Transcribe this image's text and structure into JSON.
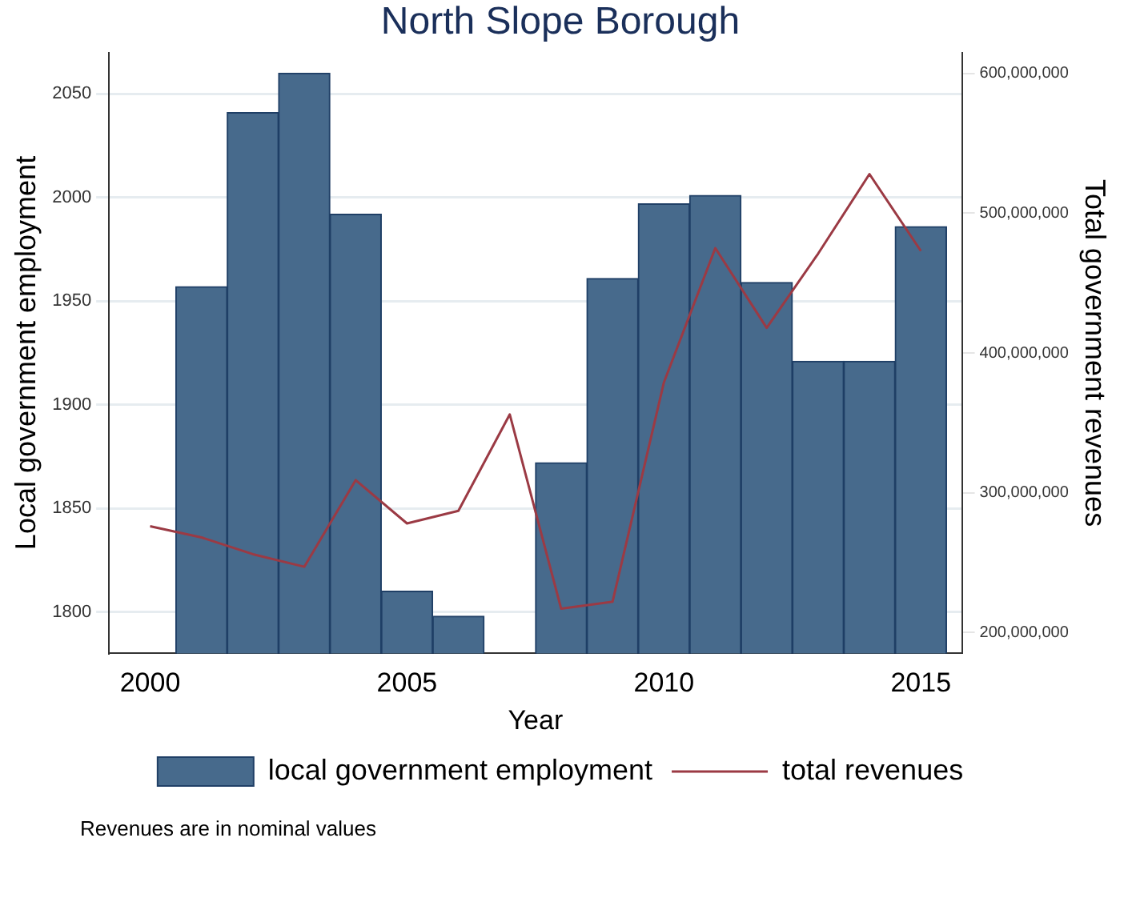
{
  "chart_data": {
    "type": "bar",
    "title": "North Slope Borough",
    "xlabel": "Year",
    "ylabel": "Local government employment",
    "y2label": "Total government revenues",
    "x": [
      2000,
      2001,
      2002,
      2003,
      2004,
      2005,
      2006,
      2007,
      2008,
      2009,
      2010,
      2011,
      2012,
      2013,
      2014,
      2015
    ],
    "series": [
      {
        "name": "local government employment",
        "color": "#476a8c",
        "values": [
          null,
          1957,
          2041,
          2060,
          1992,
          1810,
          1798,
          null,
          1872,
          1961,
          1997,
          2001,
          1959,
          1921,
          1921,
          1986
        ]
      },
      {
        "name": "total revenues",
        "type": "line",
        "axis": "y2",
        "color": "#9b3a44",
        "values": [
          276000000,
          268000000,
          256000000,
          247000000,
          309000000,
          278000000,
          287000000,
          356000000,
          217000000,
          222000000,
          379000000,
          475000000,
          418000000,
          471000000,
          528000000,
          473000000
        ]
      }
    ],
    "xlim": [
      1999.2,
      2015.8
    ],
    "xticks": [
      2000,
      2005,
      2010,
      2015
    ],
    "ylim": [
      1780,
      2070
    ],
    "yticks": [
      1800,
      1850,
      1900,
      1950,
      2000,
      2050
    ],
    "y2lim": [
      185000000,
      615000000
    ],
    "y2ticks": [
      {
        "value": 200000000,
        "label": "200,000,000"
      },
      {
        "value": 300000000,
        "label": "300,000,000"
      },
      {
        "value": 400000000,
        "label": "400,000,000"
      },
      {
        "value": 500000000,
        "label": "500,000,000"
      },
      {
        "value": 600000000,
        "label": "600,000,000"
      }
    ],
    "grid": "y",
    "legend": "bottom",
    "marker": "none",
    "line_style": "solid",
    "annotations": [
      "Revenues are in nominal values"
    ]
  }
}
